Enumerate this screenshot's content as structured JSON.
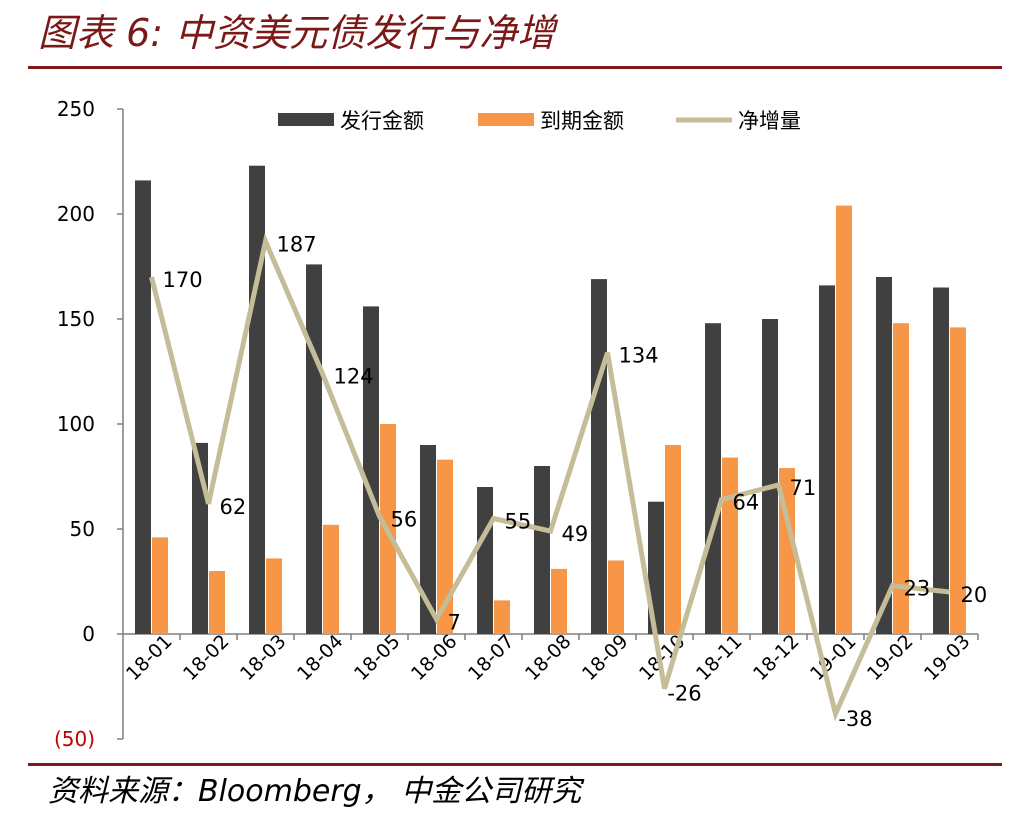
{
  "header": {
    "title": "图表 6:  中资美元债发行与净增"
  },
  "footer": {
    "source": "资料来源：Bloomberg， 中金公司研究"
  },
  "colors": {
    "issuance": "#404040",
    "maturity": "#f79646",
    "net": "#c4bd97",
    "accent": "#7b1818",
    "negative_tick": "#c00000"
  },
  "chart_data": {
    "type": "bar",
    "categories": [
      "18-01",
      "18-02",
      "18-03",
      "18-04",
      "18-05",
      "18-06",
      "18-07",
      "18-08",
      "18-09",
      "18-10",
      "18-11",
      "18-12",
      "19-01",
      "19-02",
      "19-03"
    ],
    "series": [
      {
        "name": "发行金额",
        "type": "bar",
        "values": [
          216,
          91,
          223,
          176,
          156,
          90,
          70,
          80,
          169,
          63,
          148,
          150,
          166,
          170,
          165
        ]
      },
      {
        "name": "到期金额",
        "type": "bar",
        "values": [
          46,
          30,
          36,
          52,
          100,
          83,
          16,
          31,
          35,
          90,
          84,
          79,
          204,
          148,
          146
        ]
      },
      {
        "name": "净增量",
        "type": "line",
        "values": [
          170,
          62,
          187,
          124,
          56,
          7,
          55,
          49,
          134,
          -26,
          64,
          71,
          -38,
          23,
          20
        ],
        "labels": [
          "170",
          "62",
          "187",
          "124",
          "56",
          "7",
          "55",
          "49",
          "134",
          "-26",
          "64",
          "71",
          "-38",
          "23",
          "20"
        ]
      }
    ],
    "ylim": [
      -50,
      250
    ],
    "yticks": [
      {
        "value": 250,
        "label": "250"
      },
      {
        "value": 200,
        "label": "200"
      },
      {
        "value": 150,
        "label": "150"
      },
      {
        "value": 100,
        "label": "100"
      },
      {
        "value": 50,
        "label": "50"
      },
      {
        "value": 0,
        "label": "0"
      },
      {
        "value": -50,
        "label": "(50)"
      }
    ],
    "legend_position": "top",
    "grid": false
  }
}
